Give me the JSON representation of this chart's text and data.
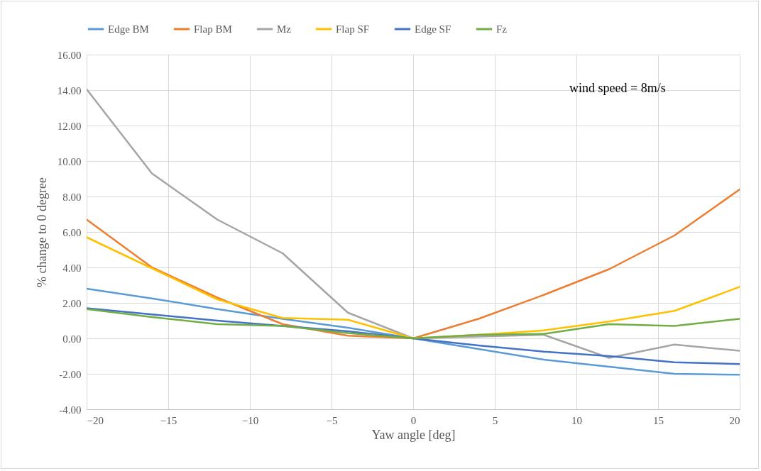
{
  "chart_data": {
    "type": "line",
    "xlabel": "Yaw angle [deg]",
    "ylabel": "% change to 0 degree",
    "annotations": [
      "wind speed = 8m/s"
    ],
    "x": [
      -20,
      -16,
      -12,
      -8,
      -4,
      0,
      4,
      8,
      12,
      16,
      20
    ],
    "series": [
      {
        "name": "Edge BM",
        "color": "#5b9bd5",
        "values": [
          2.8,
          2.25,
          1.65,
          1.1,
          0.6,
          0,
          -0.6,
          -1.2,
          -1.6,
          -2.0,
          -2.05
        ]
      },
      {
        "name": "Flap BM",
        "color": "#ed7d31",
        "values": [
          6.7,
          4.0,
          2.3,
          0.8,
          0.15,
          0,
          1.1,
          2.45,
          3.9,
          5.8,
          8.4
        ]
      },
      {
        "name": "Mz",
        "color": "#a5a5a5",
        "values": [
          14.05,
          9.3,
          6.7,
          4.8,
          1.45,
          0,
          0.1,
          0.2,
          -1.1,
          -0.35,
          -0.7
        ]
      },
      {
        "name": "Flap SF",
        "color": "#ffc000",
        "values": [
          5.7,
          3.95,
          2.2,
          1.15,
          1.05,
          0,
          0.2,
          0.45,
          0.95,
          1.55,
          2.9
        ]
      },
      {
        "name": "Edge SF",
        "color": "#4472c4",
        "values": [
          1.7,
          1.35,
          1.0,
          0.7,
          0.4,
          0,
          -0.4,
          -0.75,
          -1.0,
          -1.35,
          -1.45
        ]
      },
      {
        "name": "Fz",
        "color": "#70ad47",
        "values": [
          1.65,
          1.2,
          0.8,
          0.7,
          0.3,
          0,
          0.2,
          0.25,
          0.8,
          0.7,
          1.1
        ]
      }
    ],
    "xlim": [
      -20,
      20
    ],
    "xticks": [
      -20,
      -15,
      -10,
      -5,
      0,
      5,
      10,
      15,
      20
    ],
    "ylim": [
      -4,
      16
    ],
    "yticks": [
      {
        "value": -4,
        "label": "-4.00"
      },
      {
        "value": -2,
        "label": "-2.00"
      },
      {
        "value": 0,
        "label": "0.00"
      },
      {
        "value": 2,
        "label": "2.00"
      },
      {
        "value": 4,
        "label": "4.00"
      },
      {
        "value": 6,
        "label": "6.00"
      },
      {
        "value": 8,
        "label": "8.00"
      },
      {
        "value": 10,
        "label": "10.00"
      },
      {
        "value": 12,
        "label": "12.00"
      },
      {
        "value": 14,
        "label": "14.00"
      },
      {
        "value": 16,
        "label": "16.00"
      }
    ],
    "grid": true,
    "legend": "top",
    "line_style": "solid",
    "marker": "none"
  }
}
